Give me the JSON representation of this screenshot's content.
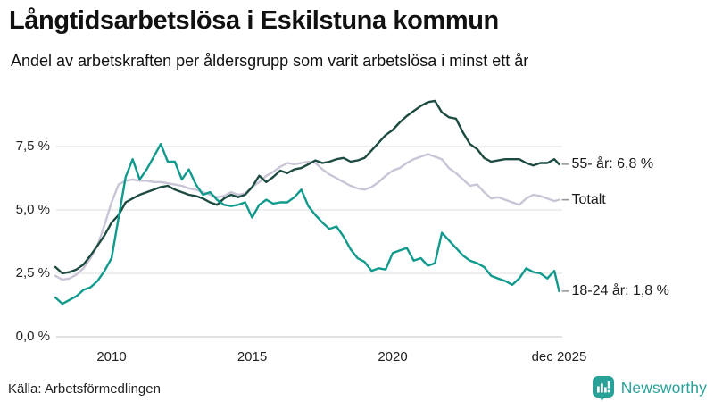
{
  "header": {
    "title": "Långtidsarbetslösa i Eskilstuna kommun",
    "subtitle": "Andel av arbetskraften per åldersgrupp som varit arbetslösa i minst ett år"
  },
  "footer": {
    "source": "Källa: Arbetsförmedlingen",
    "brand": "Newsworthy",
    "brand_color": "#2aa198"
  },
  "chart_data": {
    "type": "line",
    "title": "Långtidsarbetslösa i Eskilstuna kommun",
    "subtitle": "Andel av arbetskraften per åldersgrupp som varit arbetslösa i minst ett år",
    "unit": "%",
    "x_start": 2008.0,
    "x_step": 0.25,
    "x_last": 2025.92,
    "ylim": [
      0,
      9.8
    ],
    "grid": true,
    "legend_position": "right-end-labels",
    "yticks": [
      {
        "value": 0,
        "label": "0,0 %"
      },
      {
        "value": 2.5,
        "label": "2,5 %"
      },
      {
        "value": 5,
        "label": "5,0 %"
      },
      {
        "value": 7.5,
        "label": "7,5 %"
      }
    ],
    "xticks": [
      {
        "value": 2010,
        "label": "2010"
      },
      {
        "value": 2015,
        "label": "2015"
      },
      {
        "value": 2020,
        "label": "2020"
      },
      {
        "value": 2025.92,
        "label": "dec 2025"
      }
    ],
    "series": [
      {
        "name": "Totalt",
        "end_label": "Totalt",
        "end_value": 5.4,
        "color": "#c9c5d6",
        "values": [
          2.4,
          2.25,
          2.3,
          2.45,
          2.7,
          3.1,
          3.6,
          4.4,
          5.3,
          6.0,
          6.15,
          6.2,
          6.15,
          6.15,
          6.1,
          6.1,
          6.05,
          6.0,
          5.95,
          5.85,
          5.8,
          5.7,
          5.6,
          5.5,
          5.55,
          5.7,
          5.6,
          5.65,
          5.9,
          6.1,
          6.35,
          6.5,
          6.7,
          6.85,
          6.8,
          6.85,
          6.9,
          6.85,
          6.6,
          6.4,
          6.25,
          6.1,
          5.95,
          5.85,
          5.8,
          5.9,
          6.1,
          6.35,
          6.55,
          6.65,
          6.85,
          7.0,
          7.1,
          7.2,
          7.1,
          7.0,
          6.65,
          6.45,
          6.2,
          5.95,
          6.0,
          5.7,
          5.45,
          5.5,
          5.4,
          5.3,
          5.2,
          5.45,
          5.6,
          5.55,
          5.45,
          5.35,
          5.4
        ]
      },
      {
        "name": "55- år",
        "end_label": "55- år: 6,8 %",
        "end_value": 6.8,
        "color": "#1d4b41",
        "values": [
          2.75,
          2.5,
          2.55,
          2.65,
          2.85,
          3.2,
          3.6,
          4.0,
          4.5,
          4.8,
          5.3,
          5.45,
          5.6,
          5.7,
          5.8,
          5.9,
          5.95,
          5.8,
          5.7,
          5.6,
          5.55,
          5.45,
          5.3,
          5.2,
          5.45,
          5.6,
          5.5,
          5.6,
          5.9,
          6.35,
          6.1,
          6.3,
          6.55,
          6.45,
          6.6,
          6.65,
          6.8,
          6.95,
          6.85,
          6.9,
          7.0,
          7.05,
          6.9,
          6.95,
          7.05,
          7.35,
          7.65,
          7.95,
          8.15,
          8.45,
          8.7,
          8.9,
          9.1,
          9.25,
          9.3,
          8.85,
          8.65,
          8.6,
          8.05,
          7.6,
          7.4,
          7.05,
          6.9,
          6.95,
          7.0,
          7.0,
          7.0,
          6.85,
          6.75,
          6.85,
          6.85,
          7.0,
          6.8
        ]
      },
      {
        "name": "18-24 år",
        "end_label": "18-24 år: 1,8 %",
        "end_value": 1.8,
        "color": "#109a8d",
        "values": [
          1.55,
          1.3,
          1.45,
          1.6,
          1.85,
          1.95,
          2.2,
          2.6,
          3.1,
          4.7,
          6.3,
          7.0,
          6.2,
          6.6,
          7.1,
          7.6,
          6.9,
          6.9,
          6.2,
          6.6,
          6.0,
          5.6,
          5.7,
          5.4,
          5.2,
          5.15,
          5.2,
          5.3,
          4.7,
          5.2,
          5.4,
          5.25,
          5.3,
          5.3,
          5.5,
          5.8,
          5.15,
          4.8,
          4.5,
          4.25,
          4.35,
          3.95,
          3.45,
          3.1,
          2.95,
          2.6,
          2.7,
          2.65,
          3.3,
          3.4,
          3.5,
          3.0,
          3.1,
          2.8,
          2.9,
          4.1,
          3.8,
          3.5,
          3.2,
          3.0,
          2.9,
          2.75,
          2.4,
          2.3,
          2.2,
          2.05,
          2.3,
          2.7,
          2.55,
          2.5,
          2.3,
          2.6,
          1.8
        ]
      }
    ]
  }
}
